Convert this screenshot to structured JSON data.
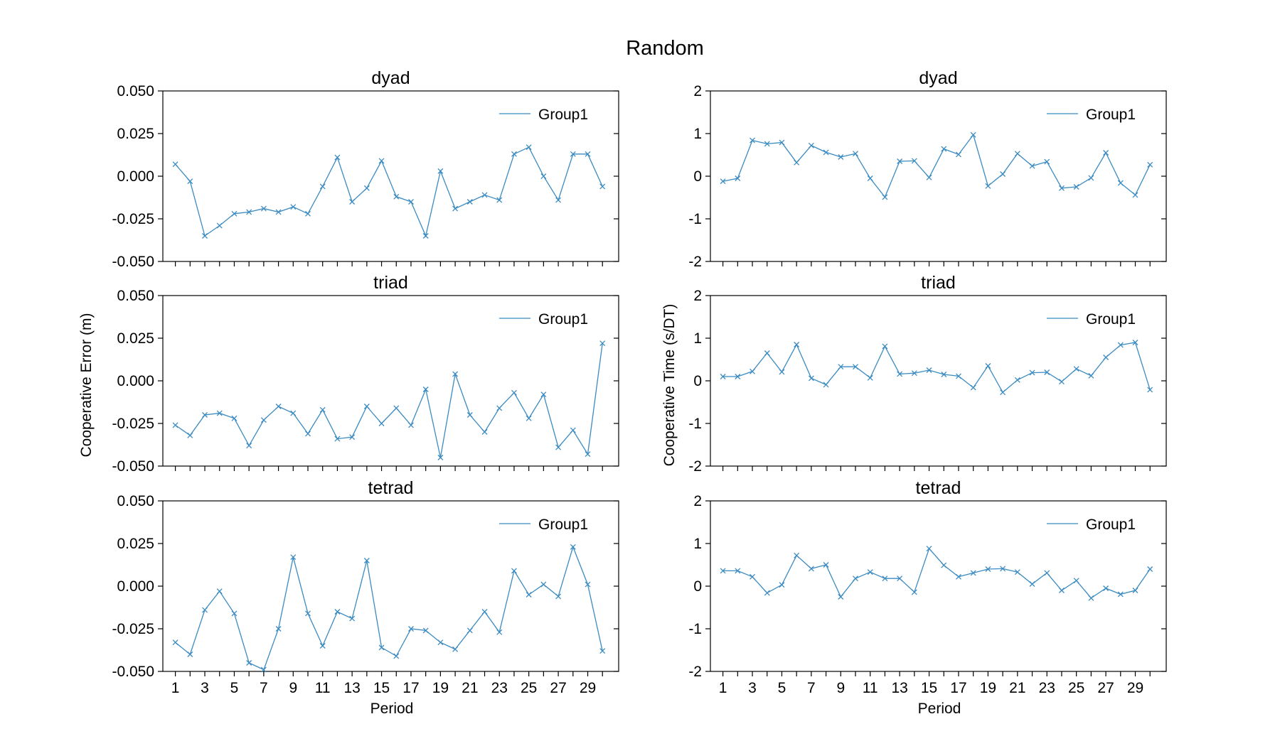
{
  "figure": {
    "title": "Random",
    "left_ylabel": "Cooperative Error (m)",
    "right_ylabel": "Cooperative Time (s/DT)",
    "xlabel": "Period",
    "line_color": "#3b8bc2"
  },
  "chart_data": [
    {
      "type": "line",
      "title": "dyad",
      "column": "left",
      "row": 0,
      "ylim": [
        -0.05,
        0.05
      ],
      "yticks": [
        "-0.050",
        "-0.025",
        "0.000",
        "0.025",
        "0.050"
      ],
      "xticks": [
        "1",
        "3",
        "5",
        "7",
        "9",
        "11",
        "13",
        "15",
        "17",
        "19",
        "21",
        "23",
        "25",
        "27",
        "29"
      ],
      "legend": "top-right",
      "grid": false,
      "series": [
        {
          "name": "Group1",
          "x": [
            1,
            2,
            3,
            4,
            5,
            6,
            7,
            8,
            9,
            10,
            11,
            12,
            13,
            14,
            15,
            16,
            17,
            18,
            19,
            20,
            21,
            22,
            23,
            24,
            25,
            26,
            27,
            28,
            29,
            30
          ],
          "values": [
            0.007,
            -0.003,
            -0.035,
            -0.029,
            -0.022,
            -0.021,
            -0.019,
            -0.021,
            -0.018,
            -0.022,
            -0.006,
            0.011,
            -0.015,
            -0.007,
            0.009,
            -0.012,
            -0.015,
            -0.035,
            0.003,
            -0.019,
            -0.015,
            -0.011,
            -0.014,
            0.013,
            0.017,
            0.0,
            -0.014,
            0.013,
            0.013,
            -0.006
          ]
        }
      ]
    },
    {
      "type": "line",
      "title": "triad",
      "column": "left",
      "row": 1,
      "ylim": [
        -0.05,
        0.05
      ],
      "yticks": [
        "-0.050",
        "-0.025",
        "0.000",
        "0.025",
        "0.050"
      ],
      "xticks": [
        "1",
        "3",
        "5",
        "7",
        "9",
        "11",
        "13",
        "15",
        "17",
        "19",
        "21",
        "23",
        "25",
        "27",
        "29"
      ],
      "legend": "top-right",
      "grid": false,
      "series": [
        {
          "name": "Group1",
          "x": [
            1,
            2,
            3,
            4,
            5,
            6,
            7,
            8,
            9,
            10,
            11,
            12,
            13,
            14,
            15,
            16,
            17,
            18,
            19,
            20,
            21,
            22,
            23,
            24,
            25,
            26,
            27,
            28,
            29,
            30
          ],
          "values": [
            -0.026,
            -0.032,
            -0.02,
            -0.019,
            -0.022,
            -0.038,
            -0.023,
            -0.015,
            -0.019,
            -0.031,
            -0.017,
            -0.034,
            -0.033,
            -0.015,
            -0.025,
            -0.016,
            -0.026,
            -0.005,
            -0.045,
            0.004,
            -0.02,
            -0.03,
            -0.016,
            -0.007,
            -0.022,
            -0.008,
            -0.039,
            -0.029,
            -0.043,
            0.022
          ]
        }
      ]
    },
    {
      "type": "line",
      "title": "tetrad",
      "column": "left",
      "row": 2,
      "ylim": [
        -0.05,
        0.05
      ],
      "yticks": [
        "-0.050",
        "-0.025",
        "0.000",
        "0.025",
        "0.050"
      ],
      "xticks": [
        "1",
        "3",
        "5",
        "7",
        "9",
        "11",
        "13",
        "15",
        "17",
        "19",
        "21",
        "23",
        "25",
        "27",
        "29"
      ],
      "legend": "top-right",
      "grid": false,
      "series": [
        {
          "name": "Group1",
          "x": [
            1,
            2,
            3,
            4,
            5,
            6,
            7,
            8,
            9,
            10,
            11,
            12,
            13,
            14,
            15,
            16,
            17,
            18,
            19,
            20,
            21,
            22,
            23,
            24,
            25,
            26,
            27,
            28,
            29,
            30
          ],
          "values": [
            -0.033,
            -0.04,
            -0.014,
            -0.003,
            -0.016,
            -0.045,
            -0.049,
            -0.025,
            0.017,
            -0.016,
            -0.035,
            -0.015,
            -0.019,
            0.015,
            -0.036,
            -0.041,
            -0.025,
            -0.026,
            -0.033,
            -0.037,
            -0.026,
            -0.015,
            -0.027,
            0.009,
            -0.005,
            0.001,
            -0.006,
            0.023,
            0.001,
            -0.038
          ]
        }
      ]
    },
    {
      "type": "line",
      "title": "dyad",
      "column": "right",
      "row": 0,
      "ylim": [
        -2,
        2
      ],
      "yticks": [
        "-2",
        "-1",
        "0",
        "1",
        "2"
      ],
      "xticks": [
        "1",
        "3",
        "5",
        "7",
        "9",
        "11",
        "13",
        "15",
        "17",
        "19",
        "21",
        "23",
        "25",
        "27",
        "29"
      ],
      "legend": "top-right",
      "grid": false,
      "series": [
        {
          "name": "Group1",
          "x": [
            1,
            2,
            3,
            4,
            5,
            6,
            7,
            8,
            9,
            10,
            11,
            12,
            13,
            14,
            15,
            16,
            17,
            18,
            19,
            20,
            21,
            22,
            23,
            24,
            25,
            26,
            27,
            28,
            29,
            30
          ],
          "values": [
            -0.12,
            -0.05,
            0.84,
            0.76,
            0.79,
            0.32,
            0.72,
            0.56,
            0.45,
            0.53,
            -0.05,
            -0.49,
            0.35,
            0.36,
            -0.03,
            0.64,
            0.51,
            0.97,
            -0.23,
            0.05,
            0.53,
            0.24,
            0.34,
            -0.28,
            -0.25,
            -0.04,
            0.55,
            -0.16,
            -0.44,
            0.27
          ]
        }
      ]
    },
    {
      "type": "line",
      "title": "triad",
      "column": "right",
      "row": 1,
      "ylim": [
        -2,
        2
      ],
      "yticks": [
        "-2",
        "-1",
        "0",
        "1",
        "2"
      ],
      "xticks": [
        "1",
        "3",
        "5",
        "7",
        "9",
        "11",
        "13",
        "15",
        "17",
        "19",
        "21",
        "23",
        "25",
        "27",
        "29"
      ],
      "legend": "top-right",
      "grid": false,
      "series": [
        {
          "name": "Group1",
          "x": [
            1,
            2,
            3,
            4,
            5,
            6,
            7,
            8,
            9,
            10,
            11,
            12,
            13,
            14,
            15,
            16,
            17,
            18,
            19,
            20,
            21,
            22,
            23,
            24,
            25,
            26,
            27,
            28,
            29,
            30
          ],
          "values": [
            0.1,
            0.1,
            0.22,
            0.65,
            0.21,
            0.85,
            0.06,
            -0.09,
            0.33,
            0.33,
            0.07,
            0.81,
            0.16,
            0.18,
            0.25,
            0.15,
            0.11,
            -0.16,
            0.35,
            -0.27,
            0.02,
            0.19,
            0.2,
            -0.02,
            0.28,
            0.12,
            0.55,
            0.84,
            0.9,
            -0.21
          ]
        }
      ]
    },
    {
      "type": "line",
      "title": "tetrad",
      "column": "right",
      "row": 2,
      "ylim": [
        -2,
        2
      ],
      "yticks": [
        "-2",
        "-1",
        "0",
        "1",
        "2"
      ],
      "xticks": [
        "1",
        "3",
        "5",
        "7",
        "9",
        "11",
        "13",
        "15",
        "17",
        "19",
        "21",
        "23",
        "25",
        "27",
        "29"
      ],
      "legend": "top-right",
      "grid": false,
      "series": [
        {
          "name": "Group1",
          "x": [
            1,
            2,
            3,
            4,
            5,
            6,
            7,
            8,
            9,
            10,
            11,
            12,
            13,
            14,
            15,
            16,
            17,
            18,
            19,
            20,
            21,
            22,
            23,
            24,
            25,
            26,
            27,
            28,
            29,
            30
          ],
          "values": [
            0.36,
            0.36,
            0.22,
            -0.16,
            0.03,
            0.72,
            0.41,
            0.5,
            -0.25,
            0.18,
            0.33,
            0.18,
            0.18,
            -0.14,
            0.88,
            0.49,
            0.22,
            0.31,
            0.4,
            0.41,
            0.33,
            0.05,
            0.31,
            -0.1,
            0.13,
            -0.28,
            -0.05,
            -0.19,
            -0.1,
            0.4
          ]
        }
      ]
    }
  ]
}
